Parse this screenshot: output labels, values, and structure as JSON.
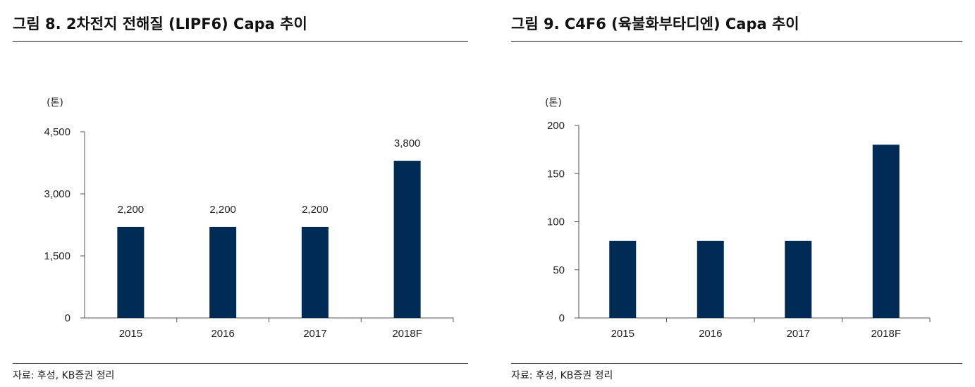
{
  "figures": [
    {
      "title": "그림 8. 2차전지 전해질 (LIPF6) Capa 추이",
      "source": "자료: 후성, KB증권 정리",
      "unit_label": "(톤)",
      "bar_color": "#002b55",
      "chart_data": {
        "type": "bar",
        "categories": [
          "2015",
          "2016",
          "2017",
          "2018F"
        ],
        "values": [
          2200,
          2200,
          2200,
          3800
        ],
        "data_labels": [
          "2,200",
          "2,200",
          "2,200",
          "3,800"
        ],
        "yticks": [
          0,
          1500,
          3000,
          4500
        ],
        "ytick_labels": [
          "0",
          "1,500",
          "3,000",
          "4,500"
        ],
        "ylim": [
          0,
          4500
        ],
        "ylabel": "(톤)",
        "title": "그림 8. 2차전지 전해질 (LIPF6) Capa 추이",
        "grid": false
      }
    },
    {
      "title": "그림 9. C4F6 (육불화부타디엔) Capa 추이",
      "source": "자료: 후성, KB증권 정리",
      "unit_label": "(톤)",
      "bar_color": "#002b55",
      "chart_data": {
        "type": "bar",
        "categories": [
          "2015",
          "2016",
          "2017",
          "2018F"
        ],
        "values": [
          80,
          80,
          80,
          180
        ],
        "data_labels": [],
        "yticks": [
          0,
          50,
          100,
          150,
          200
        ],
        "ytick_labels": [
          "0",
          "50",
          "100",
          "150",
          "200"
        ],
        "ylim": [
          0,
          200
        ],
        "ylabel": "(톤)",
        "title": "그림 9. C4F6 (육불화부타디엔) Capa 추이",
        "grid": false
      }
    }
  ]
}
